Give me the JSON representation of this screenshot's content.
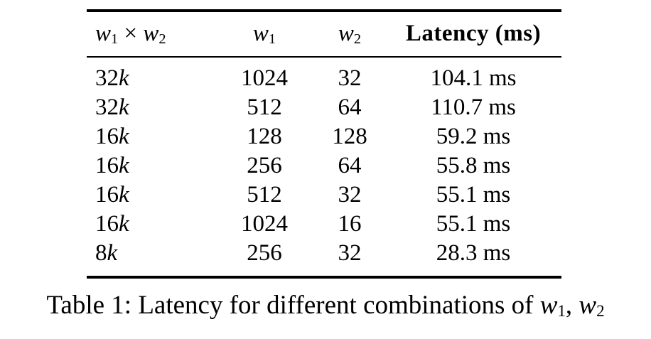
{
  "colors": {
    "text": "#000000",
    "background": "#ffffff",
    "rule": "#000000"
  },
  "table": {
    "columns": [
      {
        "label": "*w*_1_ × *w*_2_",
        "align": "left"
      },
      {
        "label": "*w*_1_",
        "align": "center"
      },
      {
        "label": "*w*_2_",
        "align": "center"
      },
      {
        "label": "Latency (ms)",
        "align": "center",
        "bold": true
      }
    ],
    "rows": [
      [
        "32*k*",
        "1024",
        "32",
        "104.1 ms"
      ],
      [
        "32*k*",
        "512",
        "64",
        "110.7 ms"
      ],
      [
        "16*k*",
        "128",
        "128",
        "59.2 ms"
      ],
      [
        "16*k*",
        "256",
        "64",
        "55.8 ms"
      ],
      [
        "16*k*",
        "512",
        "32",
        "55.1 ms"
      ],
      [
        "16*k*",
        "1024",
        "16",
        "55.1 ms"
      ],
      [
        "8*k*",
        "256",
        "32",
        "28.3 ms"
      ]
    ]
  },
  "caption": "Table 1: Latency for different combinations of *w*_1_, *w*_2_"
}
